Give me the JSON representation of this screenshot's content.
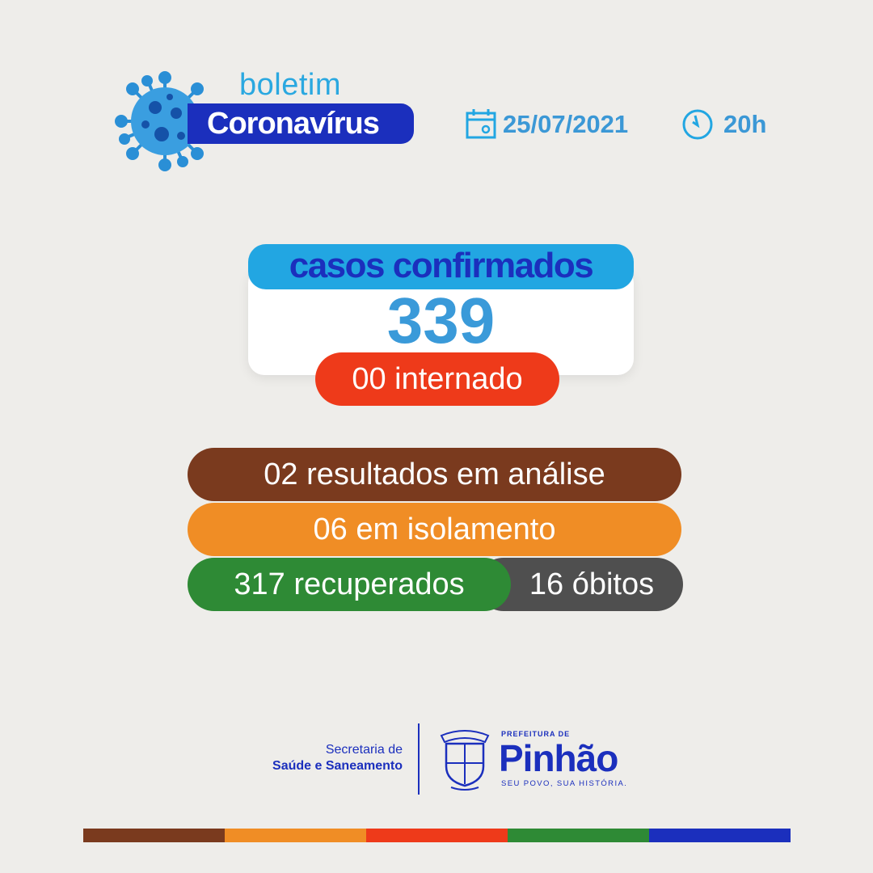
{
  "header": {
    "kicker": "boletim",
    "title": "Coronavírus",
    "date": "25/07/2021",
    "time": "20h",
    "icons": {
      "virus": "virus-icon",
      "calendar": "calendar-icon",
      "clock": "clock-icon"
    }
  },
  "confirmed": {
    "label": "casos confirmados",
    "value": "339"
  },
  "stats": {
    "hospitalized": "00 internado",
    "under_analysis": "02 resultados em análise",
    "isolation": "06 em isolamento",
    "recovered": "317 recuperados",
    "deaths": "16 óbitos"
  },
  "footer": {
    "secretaria_line1": "Secretaria de",
    "secretaria_line2": "Saúde e Saneamento",
    "crest_text": "PINHÃO",
    "prefeitura": "PREFEITURA DE",
    "city": "Pinhão",
    "slogan": "SEU POVO, SUA HISTÓRIA."
  },
  "colors": {
    "blue_dark": "#1b2fbd",
    "blue_light": "#22a6e2",
    "red": "#ee3a1a",
    "brown": "#7a3a1e",
    "orange": "#f08d25",
    "green": "#2e8a35",
    "gray": "#4f4f4f"
  }
}
